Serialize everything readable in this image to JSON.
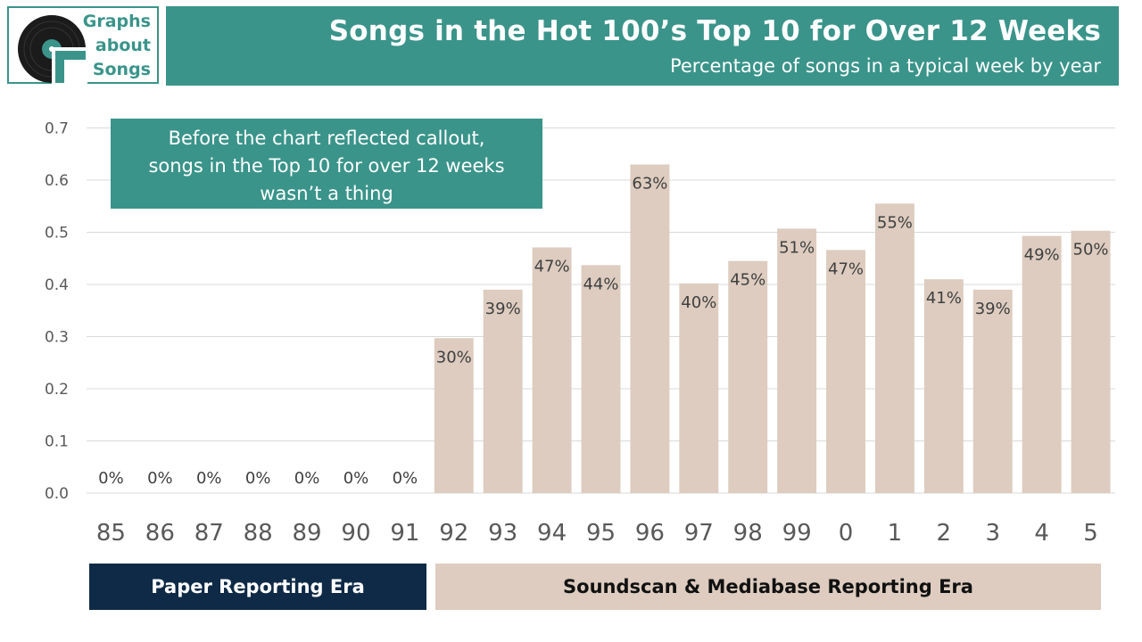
{
  "logo": {
    "lines": [
      "Graphs",
      "about",
      "Songs"
    ],
    "icon": "vinyl-record-icon"
  },
  "header": {
    "title": "Songs in the Hot 100’s Top 10 for Over 12 Weeks",
    "subtitle": "Percentage of songs in a typical week by year"
  },
  "callout": {
    "lines": [
      "Before the chart reflected callout,",
      "songs in the Top 10 for over 12 weeks",
      "wasn’t a thing"
    ]
  },
  "eras": {
    "paper": "Paper Reporting Era",
    "soundscan": "Soundscan & Mediabase Reporting Era"
  },
  "colors": {
    "accent": "#3a948a",
    "bar": "#ddccbf",
    "navy": "#0e2a47"
  },
  "chart_data": {
    "type": "bar",
    "categories": [
      "85",
      "86",
      "87",
      "88",
      "89",
      "90",
      "91",
      "92",
      "93",
      "94",
      "95",
      "96",
      "97",
      "98",
      "99",
      "0",
      "1",
      "2",
      "3",
      "4",
      "5"
    ],
    "values": [
      0,
      0,
      0,
      0,
      0,
      0,
      0,
      0.297,
      0.39,
      0.471,
      0.437,
      0.63,
      0.402,
      0.445,
      0.507,
      0.466,
      0.555,
      0.41,
      0.39,
      0.493,
      0.503
    ],
    "data_labels": [
      "0%",
      "0%",
      "0%",
      "0%",
      "0%",
      "0%",
      "0%",
      "30%",
      "39%",
      "47%",
      "44%",
      "63%",
      "40%",
      "45%",
      "51%",
      "47%",
      "55%",
      "41%",
      "39%",
      "49%",
      "50%"
    ],
    "y_ticks": [
      "0.0",
      "0.1",
      "0.2",
      "0.3",
      "0.4",
      "0.5",
      "0.6",
      "0.7"
    ],
    "ylim": [
      0,
      0.7
    ],
    "grid": true
  }
}
